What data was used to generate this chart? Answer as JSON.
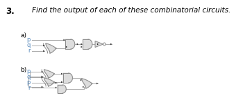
{
  "title": "3.",
  "subtitle": "Find the output of each of these combinatorial circuits.",
  "bg_color": "#ffffff",
  "text_color": "#000000",
  "label_color": "#5588bb",
  "title_fontsize": 8.5,
  "subtitle_fontsize": 7.5,
  "label_fontsize": 6,
  "circuit_a_label": "a)",
  "circuit_b_label": "b)",
  "wire_color": "#aaaaaa",
  "gate_fill": "#dddddd",
  "gate_edge": "#888888",
  "arrow_color": "#222222",
  "lw": 0.7
}
